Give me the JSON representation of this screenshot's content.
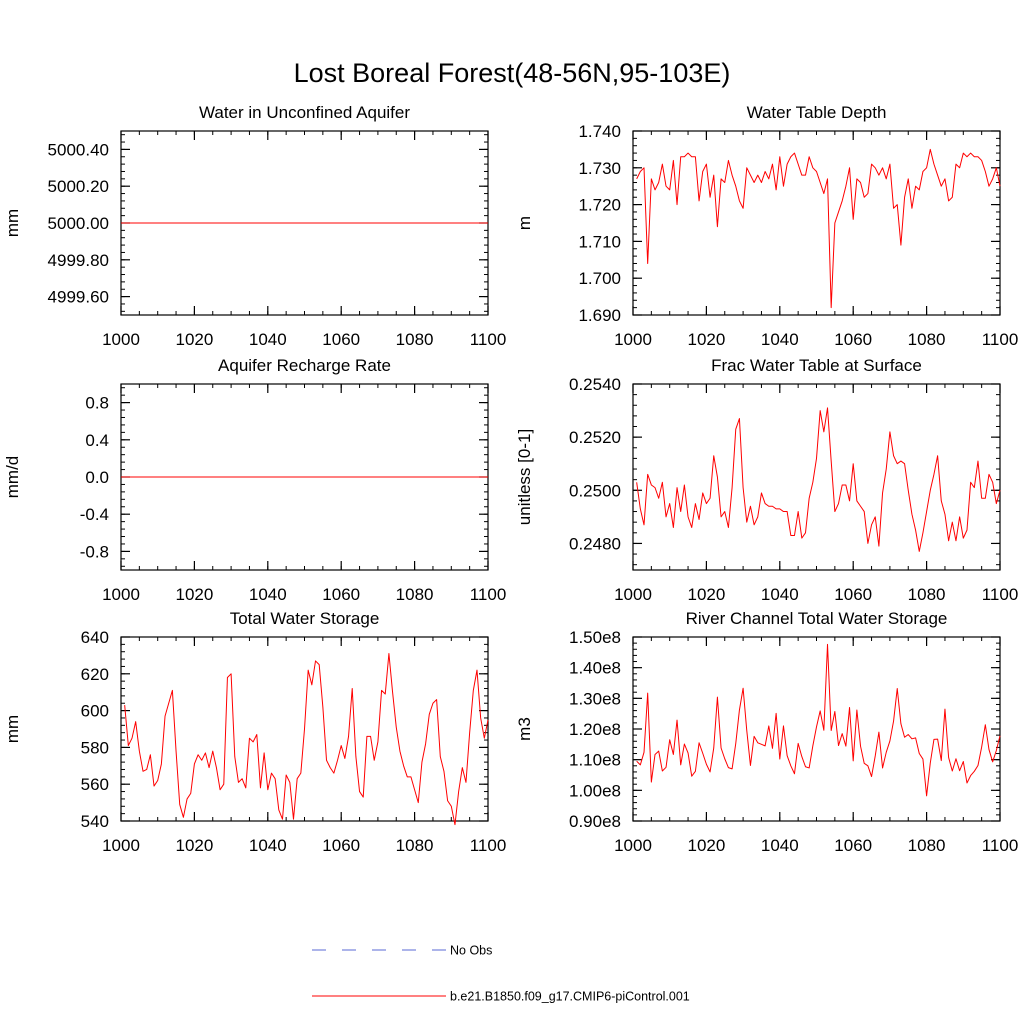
{
  "title": "Lost Boreal Forest(48-56N,95-103E)",
  "colors": {
    "series": "#ff0000",
    "obs": "#5a6ad6",
    "axis": "#000000"
  },
  "legend": {
    "items": [
      {
        "label": "No Obs",
        "style": "dashed",
        "color": "#5a6ad6"
      },
      {
        "label": "b.e21.B1850.f09_g17.CMIP6-piControl.001",
        "style": "solid",
        "color": "#ff0000"
      }
    ]
  },
  "chart_data": [
    {
      "type": "line",
      "title": "Water in Unconfined Aquifer",
      "xlabel": "",
      "ylabel": "mm",
      "xlim": [
        1000,
        1100
      ],
      "ylim": [
        4999.5,
        5000.5
      ],
      "xticks": [
        1000,
        1020,
        1040,
        1060,
        1080,
        1100
      ],
      "xtick_labels": [
        "1000",
        "1020",
        "1040",
        "1060",
        "1080",
        "1100"
      ],
      "yticks": [
        4999.6,
        4999.8,
        5000.0,
        5000.2,
        5000.4
      ],
      "ytick_labels": [
        "4999.60",
        "4999.80",
        "5000.00",
        "5000.20",
        "5000.40"
      ],
      "x_start": 1000,
      "x_step": 1,
      "series": [
        {
          "name": "b.e21.B1850.f09_g17.CMIP6-piControl.001",
          "constant": 5000.0
        }
      ]
    },
    {
      "type": "line",
      "title": "Water Table Depth",
      "xlabel": "",
      "ylabel": "m",
      "xlim": [
        1000,
        1100
      ],
      "ylim": [
        1.69,
        1.74
      ],
      "xticks": [
        1000,
        1020,
        1040,
        1060,
        1080,
        1100
      ],
      "xtick_labels": [
        "1000",
        "1020",
        "1040",
        "1060",
        "1080",
        "1100"
      ],
      "yticks": [
        1.69,
        1.7,
        1.71,
        1.72,
        1.73,
        1.74
      ],
      "ytick_labels": [
        "1.690",
        "1.700",
        "1.710",
        "1.720",
        "1.730",
        "1.740"
      ],
      "x_start": 1001,
      "x_step": 1,
      "series": [
        {
          "name": "b.e21.B1850.f09_g17.CMIP6-piControl.001",
          "values": [
            1.727,
            1.729,
            1.73,
            1.704,
            1.727,
            1.724,
            1.726,
            1.731,
            1.725,
            1.724,
            1.732,
            1.72,
            1.733,
            1.733,
            1.734,
            1.733,
            1.733,
            1.721,
            1.729,
            1.731,
            1.722,
            1.728,
            1.714,
            1.727,
            1.726,
            1.732,
            1.728,
            1.725,
            1.721,
            1.719,
            1.73,
            1.728,
            1.726,
            1.728,
            1.726,
            1.729,
            1.727,
            1.731,
            1.724,
            1.733,
            1.725,
            1.731,
            1.733,
            1.734,
            1.731,
            1.728,
            1.728,
            1.733,
            1.73,
            1.729,
            1.726,
            1.723,
            1.727,
            1.692,
            1.715,
            1.718,
            1.721,
            1.725,
            1.73,
            1.716,
            1.727,
            1.726,
            1.722,
            1.723,
            1.731,
            1.73,
            1.728,
            1.73,
            1.727,
            1.731,
            1.719,
            1.72,
            1.709,
            1.722,
            1.727,
            1.719,
            1.725,
            1.724,
            1.729,
            1.73,
            1.735,
            1.731,
            1.728,
            1.725,
            1.727,
            1.721,
            1.722,
            1.731,
            1.73,
            1.734,
            1.733,
            1.734,
            1.733,
            1.733,
            1.732,
            1.729,
            1.725,
            1.727,
            1.73,
            1.725
          ]
        }
      ]
    },
    {
      "type": "line",
      "title": "Aquifer Recharge Rate",
      "xlabel": "",
      "ylabel": "mm/d",
      "xlim": [
        1000,
        1100
      ],
      "ylim": [
        -1.0,
        1.0
      ],
      "xticks": [
        1000,
        1020,
        1040,
        1060,
        1080,
        1100
      ],
      "xtick_labels": [
        "1000",
        "1020",
        "1040",
        "1060",
        "1080",
        "1100"
      ],
      "yticks": [
        -0.8,
        -0.4,
        0.0,
        0.4,
        0.8
      ],
      "ytick_labels": [
        "-0.8",
        "-0.4",
        "0.0",
        "0.4",
        "0.8"
      ],
      "x_start": 1000,
      "x_step": 1,
      "series": [
        {
          "name": "b.e21.B1850.f09_g17.CMIP6-piControl.001",
          "constant": 0.0
        }
      ]
    },
    {
      "type": "line",
      "title": "Frac Water Table at Surface",
      "xlabel": "",
      "ylabel": "unitless [0-1]",
      "xlim": [
        1000,
        1100
      ],
      "ylim": [
        0.247,
        0.254
      ],
      "xticks": [
        1000,
        1020,
        1040,
        1060,
        1080,
        1100
      ],
      "xtick_labels": [
        "1000",
        "1020",
        "1040",
        "1060",
        "1080",
        "1100"
      ],
      "yticks": [
        0.248,
        0.25,
        0.252,
        0.254
      ],
      "ytick_labels": [
        "0.2480",
        "0.2500",
        "0.2520",
        "0.2540"
      ],
      "x_start": 1001,
      "x_step": 1,
      "series": [
        {
          "name": "b.e21.B1850.f09_g17.CMIP6-piControl.001",
          "values": [
            0.2503,
            0.2493,
            0.2487,
            0.2506,
            0.2502,
            0.2501,
            0.2497,
            0.2503,
            0.249,
            0.2495,
            0.2486,
            0.2501,
            0.2492,
            0.2502,
            0.249,
            0.2486,
            0.2495,
            0.2489,
            0.2499,
            0.2495,
            0.2497,
            0.2513,
            0.2505,
            0.249,
            0.2492,
            0.2486,
            0.2501,
            0.2523,
            0.2527,
            0.2501,
            0.2488,
            0.2494,
            0.2487,
            0.249,
            0.2499,
            0.2495,
            0.2494,
            0.2494,
            0.2493,
            0.2493,
            0.2492,
            0.2492,
            0.2483,
            0.2483,
            0.2492,
            0.2482,
            0.2484,
            0.2497,
            0.2503,
            0.2512,
            0.253,
            0.2522,
            0.2531,
            0.2511,
            0.2492,
            0.2495,
            0.2502,
            0.2502,
            0.2496,
            0.251,
            0.2496,
            0.2494,
            0.2492,
            0.248,
            0.2487,
            0.249,
            0.2479,
            0.2499,
            0.2508,
            0.2522,
            0.2513,
            0.251,
            0.2511,
            0.251,
            0.25,
            0.2491,
            0.2485,
            0.2477,
            0.2484,
            0.2492,
            0.25,
            0.2506,
            0.2513,
            0.2496,
            0.2491,
            0.2481,
            0.2488,
            0.2481,
            0.249,
            0.2482,
            0.2485,
            0.2503,
            0.2501,
            0.2511,
            0.2497,
            0.2497,
            0.2506,
            0.2503,
            0.2495,
            0.25
          ]
        }
      ]
    },
    {
      "type": "line",
      "title": "Total Water Storage",
      "xlabel": "",
      "ylabel": "mm",
      "xlim": [
        1000,
        1100
      ],
      "ylim": [
        540,
        640
      ],
      "xticks": [
        1000,
        1020,
        1040,
        1060,
        1080,
        1100
      ],
      "xtick_labels": [
        "1000",
        "1020",
        "1040",
        "1060",
        "1080",
        "1100"
      ],
      "yticks": [
        540,
        560,
        580,
        600,
        620,
        640
      ],
      "ytick_labels": [
        "540",
        "560",
        "580",
        "600",
        "620",
        "640"
      ],
      "x_start": 1001,
      "x_step": 1,
      "series": [
        {
          "name": "b.e21.B1850.f09_g17.CMIP6-piControl.001",
          "values": [
            603,
            581,
            585,
            594,
            578,
            567,
            568,
            576,
            559,
            562,
            571,
            597,
            604,
            611,
            578,
            549,
            542,
            552,
            555,
            571,
            576,
            573,
            577,
            569,
            578,
            569,
            557,
            560,
            618,
            620,
            575,
            561,
            563,
            558,
            585,
            583,
            587,
            558,
            577,
            557,
            566,
            563,
            546,
            541,
            565,
            561,
            541,
            563,
            566,
            590,
            622,
            614,
            627,
            625,
            602,
            573,
            569,
            566,
            573,
            581,
            574,
            586,
            612,
            575,
            556,
            553,
            586,
            586,
            573,
            583,
            611,
            609,
            631,
            610,
            591,
            578,
            570,
            564,
            564,
            557,
            550,
            572,
            582,
            598,
            604,
            606,
            575,
            567,
            551,
            548,
            538,
            556,
            569,
            561,
            588,
            611,
            622,
            596,
            585,
            595
          ]
        }
      ]
    },
    {
      "type": "line",
      "title": "River Channel Total Water Storage",
      "xlabel": "",
      "ylabel": "m3",
      "xlim": [
        1000,
        1100
      ],
      "ylim": [
        90000000.0,
        150000000.0
      ],
      "xticks": [
        1000,
        1020,
        1040,
        1060,
        1080,
        1100
      ],
      "xtick_labels": [
        "1000",
        "1020",
        "1040",
        "1060",
        "1080",
        "1100"
      ],
      "yticks": [
        90000000.0,
        100000000.0,
        110000000.0,
        120000000.0,
        130000000.0,
        140000000.0,
        150000000.0
      ],
      "ytick_labels": [
        "0.90e8",
        "1.00e8",
        "1.10e8",
        "1.20e8",
        "1.30e8",
        "1.40e8",
        "1.50e8"
      ],
      "x_start": 1001,
      "x_step": 1,
      "series": [
        {
          "name": "b.e21.B1850.f09_g17.CMIP6-piControl.001",
          "values": [
            109500000.0,
            108300000.0,
            112400000.0,
            131700000.0,
            102700000.0,
            111700000.0,
            112800000.0,
            106300000.0,
            107500000.0,
            116500000.0,
            111700000.0,
            122900000.0,
            108300000.0,
            115100000.0,
            112200000.0,
            104600000.0,
            106200000.0,
            115500000.0,
            112100000.0,
            108500000.0,
            106000000.0,
            113800000.0,
            130400000.0,
            113800000.0,
            110300000.0,
            107400000.0,
            107000000.0,
            115300000.0,
            126200000.0,
            133300000.0,
            119500000.0,
            108100000.0,
            117600000.0,
            115500000.0,
            115000000.0,
            114500000.0,
            121000000.0,
            113700000.0,
            125100000.0,
            110200000.0,
            121000000.0,
            111300000.0,
            108000000.0,
            105400000.0,
            115300000.0,
            111000000.0,
            107700000.0,
            107300000.0,
            114500000.0,
            120700000.0,
            125900000.0,
            119600000.0,
            147600000.0,
            119500000.0,
            125700000.0,
            114600000.0,
            118500000.0,
            114400000.0,
            127000000.0,
            109600000.0,
            126200000.0,
            114400000.0,
            108800000.0,
            108000000.0,
            104500000.0,
            111200000.0,
            119000000.0,
            107300000.0,
            112400000.0,
            116100000.0,
            122600000.0,
            133200000.0,
            121700000.0,
            117300000.0,
            118200000.0,
            116800000.0,
            117100000.0,
            112000000.0,
            110200000.0,
            98200000.0,
            108900000.0,
            116600000.0,
            116700000.0,
            109700000.0,
            126500000.0,
            110700000.0,
            106300000.0,
            110300000.0,
            106400000.0,
            109400000.0,
            102400000.0,
            104800000.0,
            106200000.0,
            108100000.0,
            114100000.0,
            121400000.0,
            113300000.0,
            109300000.0,
            113000000.0,
            117800000.0
          ]
        }
      ]
    }
  ]
}
